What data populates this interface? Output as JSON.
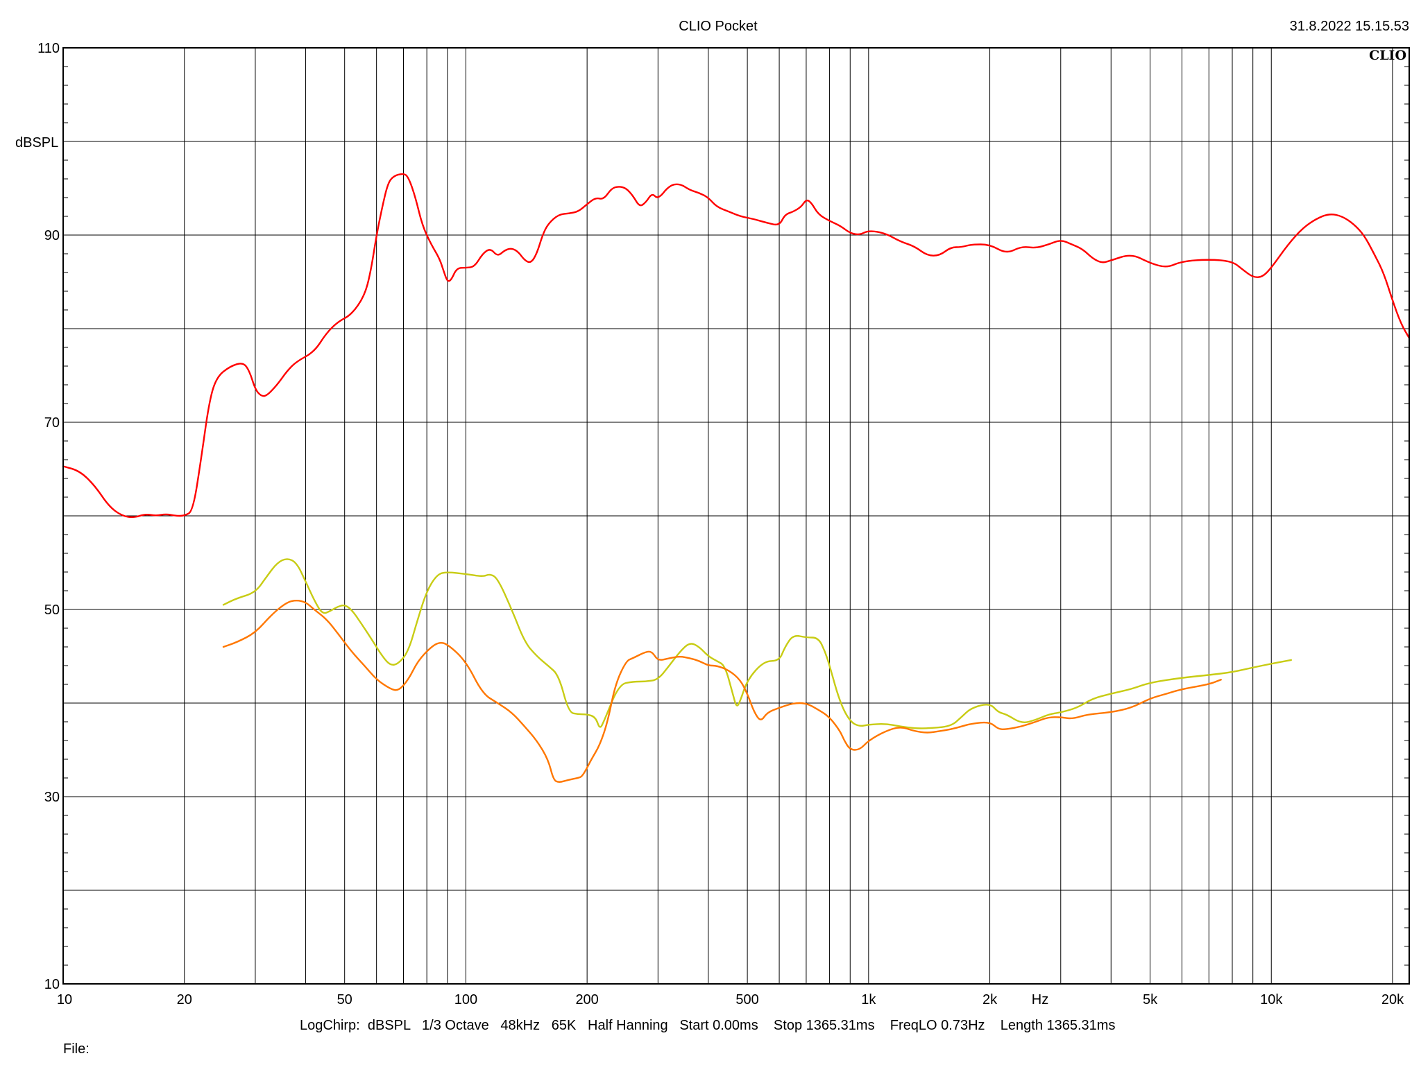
{
  "header": {
    "title": "CLIO Pocket",
    "timestamp": "31.8.2022 15.15.53",
    "logo_text": "CLIO"
  },
  "footer": {
    "settings": "LogChirp:  dBSPL   1/3 Octave   48kHz   65K   Half Hanning   Start 0.00ms    Stop 1365.31ms    FreqLO 0.73Hz    Length 1365.31ms",
    "file_label": "File:"
  },
  "chart_data": {
    "type": "line",
    "title": "CLIO Pocket",
    "xlabel": "Hz",
    "ylabel": "dBSPL",
    "x_scale": "log",
    "xlim": [
      10,
      22000
    ],
    "ylim": [
      10,
      110
    ],
    "grid": true,
    "x_major_ticks": [
      10,
      20,
      50,
      100,
      200,
      500,
      1000,
      2000,
      5000,
      10000,
      20000
    ],
    "x_tick_labels": [
      "10",
      "20",
      "50",
      "100",
      "200",
      "500",
      "1k",
      "2k",
      "5k",
      "10k",
      "20k"
    ],
    "y_ticks": [
      10,
      30,
      50,
      70,
      90,
      110
    ],
    "y_tick_labels": [
      "10",
      "30",
      "50",
      "70",
      "90",
      "110"
    ],
    "series": [
      {
        "color": "#ff0000",
        "points": [
          [
            10,
            65.3
          ],
          [
            11,
            64.8
          ],
          [
            12,
            63.2
          ],
          [
            13,
            61
          ],
          [
            14,
            60
          ],
          [
            15,
            59.8
          ],
          [
            16,
            60.2
          ],
          [
            17,
            60
          ],
          [
            18,
            60.2
          ],
          [
            19,
            60
          ],
          [
            20,
            60
          ],
          [
            21,
            60.5
          ],
          [
            22,
            66
          ],
          [
            23,
            72
          ],
          [
            24,
            74.8
          ],
          [
            26,
            76
          ],
          [
            28,
            76.4
          ],
          [
            29,
            75.5
          ],
          [
            30,
            73.5
          ],
          [
            31,
            72.8
          ],
          [
            32,
            72.8
          ],
          [
            34,
            74
          ],
          [
            36,
            75.5
          ],
          [
            38,
            76.5
          ],
          [
            42,
            77.5
          ],
          [
            45,
            79.5
          ],
          [
            48,
            80.7
          ],
          [
            52,
            81.5
          ],
          [
            56,
            83.5
          ],
          [
            58,
            86
          ],
          [
            60,
            90
          ],
          [
            62,
            93
          ],
          [
            64,
            95.5
          ],
          [
            66,
            96.3
          ],
          [
            70,
            96.6
          ],
          [
            72,
            96.2
          ],
          [
            75,
            94
          ],
          [
            78,
            91
          ],
          [
            82,
            89
          ],
          [
            86,
            87.5
          ],
          [
            88,
            86.2
          ],
          [
            90,
            85
          ],
          [
            92,
            85.2
          ],
          [
            95,
            86.5
          ],
          [
            100,
            86.5
          ],
          [
            105,
            86.6
          ],
          [
            110,
            88
          ],
          [
            115,
            88.6
          ],
          [
            120,
            87.7
          ],
          [
            125,
            88.4
          ],
          [
            130,
            88.6
          ],
          [
            135,
            88.2
          ],
          [
            140,
            87.3
          ],
          [
            145,
            87
          ],
          [
            150,
            88
          ],
          [
            155,
            90
          ],
          [
            160,
            91.2
          ],
          [
            170,
            92.2
          ],
          [
            180,
            92.3
          ],
          [
            190,
            92.5
          ],
          [
            200,
            93.3
          ],
          [
            210,
            94
          ],
          [
            220,
            93.8
          ],
          [
            230,
            95
          ],
          [
            240,
            95.2
          ],
          [
            250,
            95
          ],
          [
            260,
            94.2
          ],
          [
            270,
            93
          ],
          [
            280,
            93.5
          ],
          [
            290,
            94.5
          ],
          [
            300,
            93.8
          ],
          [
            320,
            95.3
          ],
          [
            340,
            95.5
          ],
          [
            360,
            94.8
          ],
          [
            380,
            94.5
          ],
          [
            400,
            94
          ],
          [
            420,
            93
          ],
          [
            450,
            92.5
          ],
          [
            480,
            92
          ],
          [
            520,
            91.7
          ],
          [
            560,
            91.3
          ],
          [
            600,
            91
          ],
          [
            620,
            92.2
          ],
          [
            650,
            92.5
          ],
          [
            680,
            93
          ],
          [
            700,
            93.8
          ],
          [
            720,
            93.5
          ],
          [
            750,
            92.2
          ],
          [
            800,
            91.5
          ],
          [
            850,
            91
          ],
          [
            900,
            90.2
          ],
          [
            950,
            90
          ],
          [
            1000,
            90.5
          ],
          [
            1100,
            90.2
          ],
          [
            1200,
            89.3
          ],
          [
            1300,
            88.8
          ],
          [
            1400,
            87.8
          ],
          [
            1500,
            87.8
          ],
          [
            1600,
            88.7
          ],
          [
            1700,
            88.7
          ],
          [
            1800,
            89
          ],
          [
            2000,
            89
          ],
          [
            2200,
            88
          ],
          [
            2400,
            88.8
          ],
          [
            2600,
            88.6
          ],
          [
            2800,
            89
          ],
          [
            3000,
            89.5
          ],
          [
            3200,
            89
          ],
          [
            3400,
            88.5
          ],
          [
            3600,
            87.5
          ],
          [
            3800,
            87
          ],
          [
            4000,
            87.3
          ],
          [
            4500,
            88
          ],
          [
            5000,
            87
          ],
          [
            5500,
            86.5
          ],
          [
            6000,
            87.2
          ],
          [
            7000,
            87.4
          ],
          [
            8000,
            87.2
          ],
          [
            8500,
            86.3
          ],
          [
            9000,
            85.5
          ],
          [
            9500,
            85.5
          ],
          [
            10000,
            86.5
          ],
          [
            11000,
            89
          ],
          [
            12000,
            90.8
          ],
          [
            13000,
            91.8
          ],
          [
            14000,
            92.3
          ],
          [
            15000,
            92
          ],
          [
            16000,
            91.2
          ],
          [
            17000,
            90
          ],
          [
            18000,
            88
          ],
          [
            19000,
            86
          ],
          [
            20000,
            83
          ],
          [
            21000,
            80.5
          ],
          [
            22000,
            79
          ]
        ]
      },
      {
        "color": "#c8cc14",
        "points": [
          [
            25,
            50.5
          ],
          [
            27,
            51.2
          ],
          [
            30,
            51.8
          ],
          [
            32,
            53.5
          ],
          [
            34,
            55
          ],
          [
            36,
            55.5
          ],
          [
            38,
            55
          ],
          [
            40,
            53
          ],
          [
            42,
            51
          ],
          [
            44,
            49.5
          ],
          [
            46,
            49.8
          ],
          [
            48,
            50.3
          ],
          [
            50,
            50.5
          ],
          [
            52,
            50
          ],
          [
            55,
            48.5
          ],
          [
            58,
            47
          ],
          [
            62,
            45
          ],
          [
            65,
            44
          ],
          [
            68,
            44.2
          ],
          [
            72,
            45.5
          ],
          [
            76,
            49
          ],
          [
            80,
            52
          ],
          [
            85,
            53.8
          ],
          [
            90,
            54
          ],
          [
            100,
            53.8
          ],
          [
            110,
            53.5
          ],
          [
            115,
            53.8
          ],
          [
            120,
            53.3
          ],
          [
            130,
            50
          ],
          [
            140,
            46.5
          ],
          [
            150,
            45
          ],
          [
            160,
            44
          ],
          [
            170,
            43
          ],
          [
            180,
            39
          ],
          [
            190,
            38.8
          ],
          [
            200,
            38.8
          ],
          [
            210,
            38.5
          ],
          [
            215,
            37.2
          ],
          [
            220,
            38
          ],
          [
            240,
            42
          ],
          [
            260,
            42.3
          ],
          [
            280,
            42.3
          ],
          [
            300,
            42.5
          ],
          [
            320,
            44
          ],
          [
            340,
            45.5
          ],
          [
            360,
            46.5
          ],
          [
            380,
            46
          ],
          [
            400,
            45
          ],
          [
            420,
            44.5
          ],
          [
            440,
            44
          ],
          [
            460,
            41
          ],
          [
            470,
            39.5
          ],
          [
            480,
            40.2
          ],
          [
            500,
            42.5
          ],
          [
            550,
            44.5
          ],
          [
            600,
            44.5
          ],
          [
            620,
            46
          ],
          [
            650,
            47.3
          ],
          [
            700,
            47
          ],
          [
            750,
            47
          ],
          [
            780,
            45.5
          ],
          [
            800,
            44
          ],
          [
            850,
            40
          ],
          [
            900,
            38
          ],
          [
            950,
            37.5
          ],
          [
            1000,
            37.7
          ],
          [
            1100,
            37.8
          ],
          [
            1200,
            37.5
          ],
          [
            1300,
            37.3
          ],
          [
            1400,
            37.3
          ],
          [
            1600,
            37.5
          ],
          [
            1700,
            38.5
          ],
          [
            1800,
            39.5
          ],
          [
            2000,
            40
          ],
          [
            2100,
            39
          ],
          [
            2200,
            38.8
          ],
          [
            2400,
            37.8
          ],
          [
            2600,
            38.2
          ],
          [
            2800,
            38.8
          ],
          [
            3000,
            39
          ],
          [
            3300,
            39.5
          ],
          [
            3600,
            40.5
          ],
          [
            4000,
            41
          ],
          [
            4500,
            41.5
          ],
          [
            5000,
            42.2
          ],
          [
            6000,
            42.7
          ],
          [
            7000,
            43
          ],
          [
            8000,
            43.3
          ],
          [
            9000,
            43.8
          ],
          [
            10000,
            44.2
          ],
          [
            11200,
            44.6
          ]
        ]
      },
      {
        "color": "#ff7700",
        "points": [
          [
            25,
            46
          ],
          [
            27,
            46.5
          ],
          [
            30,
            47.5
          ],
          [
            33,
            49.5
          ],
          [
            36,
            50.8
          ],
          [
            38,
            51
          ],
          [
            40,
            50.8
          ],
          [
            42,
            50
          ],
          [
            45,
            49
          ],
          [
            48,
            47.5
          ],
          [
            52,
            45.5
          ],
          [
            56,
            44
          ],
          [
            60,
            42.5
          ],
          [
            65,
            41.5
          ],
          [
            68,
            41.3
          ],
          [
            72,
            42.5
          ],
          [
            76,
            44.5
          ],
          [
            82,
            46
          ],
          [
            86,
            46.5
          ],
          [
            90,
            46.3
          ],
          [
            100,
            44.5
          ],
          [
            110,
            41
          ],
          [
            120,
            40
          ],
          [
            130,
            39
          ],
          [
            140,
            37.5
          ],
          [
            150,
            36
          ],
          [
            160,
            34
          ],
          [
            165,
            31.8
          ],
          [
            170,
            31.5
          ],
          [
            180,
            31.8
          ],
          [
            190,
            32
          ],
          [
            195,
            32.2
          ],
          [
            205,
            34
          ],
          [
            215,
            35.5
          ],
          [
            225,
            38
          ],
          [
            235,
            42
          ],
          [
            250,
            44.5
          ],
          [
            260,
            44.8
          ],
          [
            280,
            45.5
          ],
          [
            290,
            45.5
          ],
          [
            300,
            44.5
          ],
          [
            320,
            44.8
          ],
          [
            340,
            45
          ],
          [
            360,
            44.8
          ],
          [
            380,
            44.5
          ],
          [
            400,
            44
          ],
          [
            420,
            44
          ],
          [
            450,
            43.5
          ],
          [
            480,
            42.5
          ],
          [
            500,
            41
          ],
          [
            520,
            39
          ],
          [
            540,
            38
          ],
          [
            560,
            39
          ],
          [
            600,
            39.5
          ],
          [
            650,
            40
          ],
          [
            700,
            40
          ],
          [
            750,
            39.3
          ],
          [
            800,
            38.5
          ],
          [
            850,
            37
          ],
          [
            870,
            36
          ],
          [
            900,
            35
          ],
          [
            950,
            35
          ],
          [
            1000,
            36
          ],
          [
            1100,
            37
          ],
          [
            1200,
            37.5
          ],
          [
            1300,
            37
          ],
          [
            1400,
            36.8
          ],
          [
            1500,
            37
          ],
          [
            1600,
            37.2
          ],
          [
            1700,
            37.5
          ],
          [
            1800,
            37.8
          ],
          [
            2000,
            38
          ],
          [
            2100,
            37.2
          ],
          [
            2200,
            37.2
          ],
          [
            2400,
            37.5
          ],
          [
            2600,
            38
          ],
          [
            2800,
            38.5
          ],
          [
            3000,
            38.5
          ],
          [
            3200,
            38.3
          ],
          [
            3500,
            38.8
          ],
          [
            4000,
            39
          ],
          [
            4500,
            39.5
          ],
          [
            5000,
            40.5
          ],
          [
            5500,
            41
          ],
          [
            6000,
            41.5
          ],
          [
            7000,
            42
          ],
          [
            7500,
            42.5
          ]
        ]
      }
    ]
  }
}
